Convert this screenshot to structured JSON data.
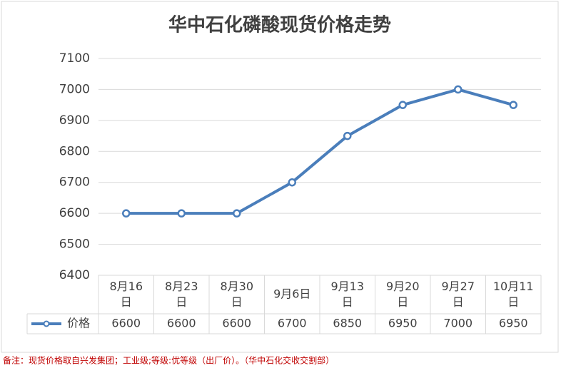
{
  "chart_data": {
    "type": "line",
    "title": "华中石化磷酸现货价格走势",
    "categories": [
      "8月16日",
      "8月23日",
      "8月30日",
      "9月6日",
      "9月13日",
      "9月20日",
      "9月27日",
      "10月11日"
    ],
    "series": [
      {
        "name": "价格",
        "color": "#4a7ebb",
        "values": [
          6600,
          6600,
          6600,
          6700,
          6850,
          6950,
          7000,
          6950
        ]
      }
    ],
    "ylim": [
      6400,
      7100
    ],
    "yticks": [
      6400,
      6500,
      6600,
      6700,
      6800,
      6900,
      7000,
      7100
    ],
    "grid": true,
    "note": "备注：现货价格取自兴发集团；工业级;等级:优等级（出厂价）。（华中石化交收交割部）"
  }
}
